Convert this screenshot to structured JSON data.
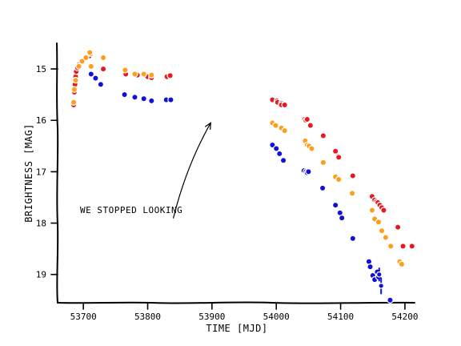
{
  "chart_data": {
    "type": "scatter",
    "title": "",
    "xlabel": "TIME [MJD]",
    "ylabel": "BRIGHTNESS [MAG]",
    "xlim": [
      53660,
      54215
    ],
    "ylim": [
      19.55,
      14.5
    ],
    "y_inverted": true,
    "grid": false,
    "legend": "none",
    "xticks": [
      53700,
      53800,
      53900,
      54000,
      54100,
      54200
    ],
    "xtick_labels": [
      "53700",
      "53800",
      "53900",
      "54000",
      "54100",
      "54200"
    ],
    "yticks": [
      15,
      16,
      17,
      18,
      19
    ],
    "ytick_labels": [
      "15",
      "16",
      "17",
      "18",
      "19"
    ],
    "annotation": {
      "text": "WE STOPPED LOOKING",
      "arrow_from": [
        53840,
        17.9
      ],
      "arrow_to": [
        53898,
        16.05
      ]
    },
    "series": [
      {
        "color": "#e8191e",
        "x": [
          53685,
          53686,
          53687,
          53688,
          53689,
          53691,
          53693,
          53698,
          53703,
          53709,
          53711,
          53731,
          53766,
          53784,
          53800,
          53806,
          53830,
          53835,
          53994,
          54001,
          54002,
          54008,
          54008,
          54013,
          54044,
          54046,
          54048,
          54053,
          54073,
          54092,
          54096,
          54097,
          54119,
          54149,
          54153,
          54156,
          54158,
          54161,
          54164,
          54167,
          54189,
          54197,
          54211
        ],
        "y": [
          15.7,
          15.45,
          15.3,
          15.15,
          15.05,
          14.98,
          14.92,
          14.85,
          14.8,
          14.75,
          14.7,
          15.0,
          15.1,
          15.12,
          15.15,
          15.17,
          15.15,
          15.13,
          15.6,
          15.62,
          15.65,
          15.67,
          15.7,
          15.7,
          15.98,
          16.0,
          15.98,
          16.1,
          16.3,
          16.6,
          16.7,
          16.72,
          17.08,
          17.48,
          17.55,
          17.58,
          17.6,
          17.65,
          17.7,
          17.75,
          18.08,
          18.45,
          18.45
        ]
      },
      {
        "color": "#ff9e1a",
        "x": [
          53685,
          53686,
          53688,
          53693,
          53698,
          53704,
          53710,
          53712,
          53731,
          53765,
          53780,
          53794,
          53806,
          53994,
          53999,
          54008,
          54013,
          54045,
          54048,
          54051,
          54055,
          54073,
          54092,
          54097,
          54118,
          54149,
          54153,
          54159,
          54164,
          54170,
          54178,
          54192,
          54195
        ],
        "y": [
          15.65,
          15.4,
          15.22,
          14.95,
          14.85,
          14.78,
          14.68,
          14.95,
          14.78,
          15.02,
          15.1,
          15.1,
          15.12,
          16.05,
          16.1,
          16.15,
          16.2,
          16.4,
          16.48,
          16.5,
          16.55,
          16.82,
          17.1,
          17.15,
          17.42,
          17.75,
          17.92,
          17.98,
          18.15,
          18.28,
          18.45,
          18.75,
          18.8
        ]
      },
      {
        "color": "#1010d8",
        "x": [
          53712,
          53719,
          53727,
          53764,
          53780,
          53794,
          53806,
          53829,
          53836,
          53994,
          54000,
          54005,
          54011,
          54043,
          54046,
          54048,
          54050,
          54072,
          54092,
          54099,
          54102,
          54119,
          54144,
          54146,
          54150,
          54153,
          54157,
          54159,
          54163,
          54177
        ],
        "y": [
          15.1,
          15.18,
          15.3,
          15.5,
          15.55,
          15.58,
          15.62,
          15.6,
          15.6,
          16.48,
          16.55,
          16.65,
          16.78,
          16.98,
          17.0,
          17.02,
          17.0,
          17.32,
          17.65,
          17.8,
          17.9,
          18.3,
          18.75,
          18.85,
          19.02,
          19.1,
          18.95,
          19.05,
          19.22,
          19.5
        ],
        "errorbar_points": [
          {
            "x": 54160,
            "y": 19.0,
            "err": 0.12
          },
          {
            "x": 54163,
            "y": 19.22,
            "err": 0.15
          }
        ]
      }
    ]
  }
}
